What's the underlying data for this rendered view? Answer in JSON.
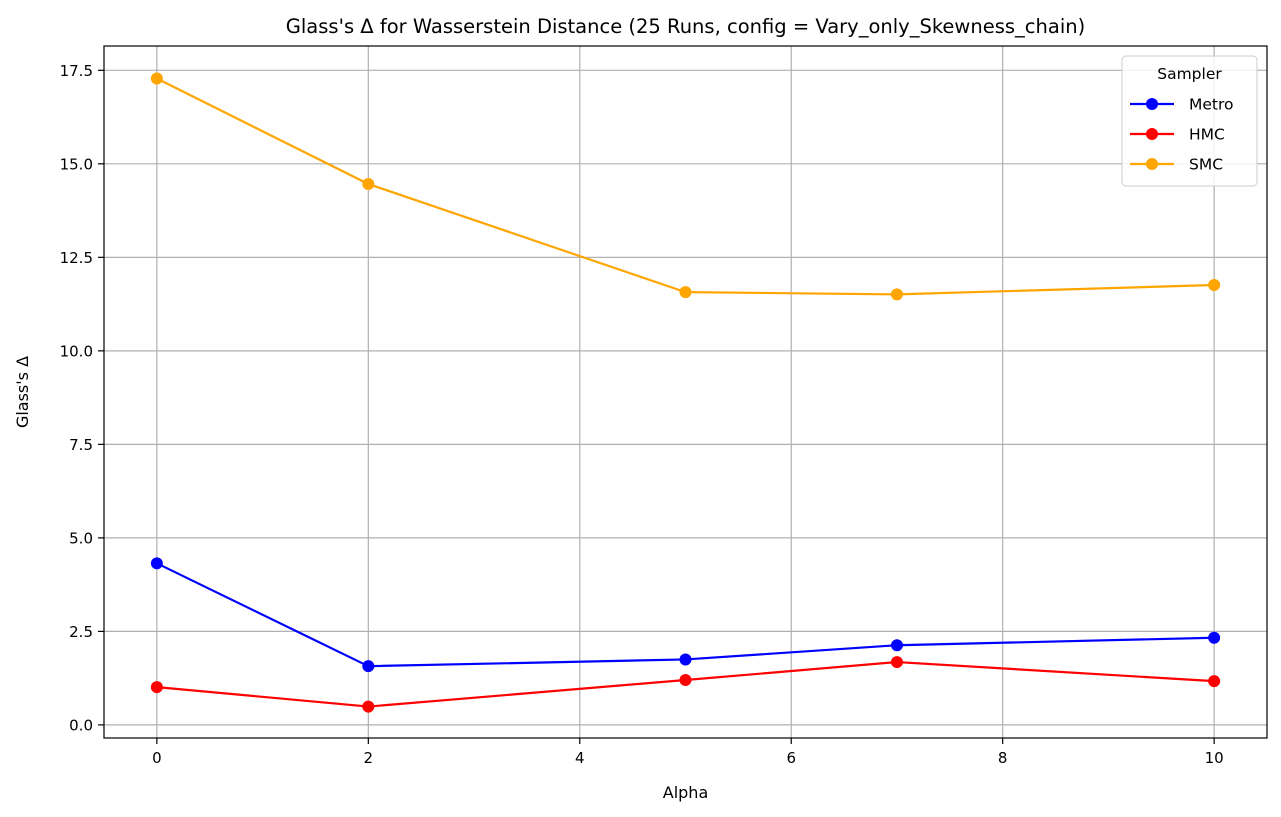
{
  "chart_data": {
    "type": "line",
    "title": "Glass's Δ for Wasserstein Distance (25 Runs, config = Vary_only_Skewness_chain)",
    "xlabel": "Alpha",
    "ylabel": "Glass's Δ",
    "x": [
      0,
      2,
      5,
      7,
      10
    ],
    "xlim": [
      -0.5,
      10.5
    ],
    "ylim": [
      -0.35,
      18.15
    ],
    "xticks": [
      0,
      2,
      4,
      6,
      8,
      10
    ],
    "yticks": [
      0.0,
      2.5,
      5.0,
      7.5,
      10.0,
      12.5,
      15.0,
      17.5
    ],
    "xtick_labels": [
      "0",
      "2",
      "4",
      "6",
      "8",
      "10"
    ],
    "ytick_labels": [
      "0.0",
      "2.5",
      "5.0",
      "7.5",
      "10.0",
      "12.5",
      "15.0",
      "17.5"
    ],
    "grid": true,
    "legend": {
      "title": "Sampler",
      "placement": "top-right"
    },
    "series": [
      {
        "name": "Metro",
        "color": "#0000ff",
        "values": [
          4.32,
          1.57,
          1.75,
          2.13,
          2.33
        ]
      },
      {
        "name": "HMC",
        "color": "#ff0000",
        "values": [
          1.01,
          0.49,
          1.2,
          1.68,
          1.17
        ]
      },
      {
        "name": "SMC",
        "color": "#ffa500",
        "values": [
          17.28,
          14.46,
          11.57,
          11.51,
          11.76
        ]
      }
    ]
  }
}
